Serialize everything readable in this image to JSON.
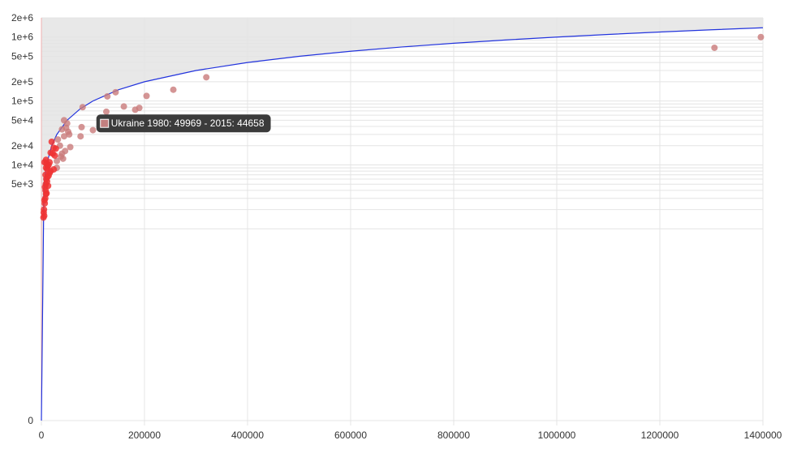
{
  "chart_data": {
    "type": "scatter",
    "title": "",
    "xlabel": "",
    "ylabel": "",
    "y_scale": "log1p",
    "xlim": [
      0,
      1400000
    ],
    "ylim": [
      0,
      2000000
    ],
    "x_ticks": [
      "0",
      "200000",
      "400000",
      "600000",
      "800000",
      "1000000",
      "1200000",
      "1400000"
    ],
    "y_ticks": [
      {
        "value": 0,
        "label": "0"
      },
      {
        "value": 5000,
        "label": "5e+3"
      },
      {
        "value": 10000,
        "label": "1e+4"
      },
      {
        "value": 20000,
        "label": "2e+4"
      },
      {
        "value": 50000,
        "label": "5e+4"
      },
      {
        "value": 100000,
        "label": "1e+5"
      },
      {
        "value": 200000,
        "label": "2e+5"
      },
      {
        "value": 500000,
        "label": "5e+5"
      },
      {
        "value": 1000000,
        "label": "1e+6"
      },
      {
        "value": 2000000,
        "label": "2e+6"
      }
    ],
    "grid": true,
    "colors": {
      "point_dense": "#ee3333",
      "point": "#c97a7a",
      "curve": "#2233dd",
      "shaded_region": "#e8e8e8",
      "axis_line": "#f0b0b0",
      "grid": "#e4e4e4",
      "tooltip_bg": "#3b3b3b",
      "tooltip_swatch": "#c27f7f"
    },
    "reference_curve": {
      "description": "1980 = 2015",
      "points": [
        [
          0,
          0
        ],
        [
          5000,
          5000
        ],
        [
          10000,
          10000
        ],
        [
          20000,
          20000
        ],
        [
          30000,
          30000
        ],
        [
          50000,
          50000
        ],
        [
          75000,
          75000
        ],
        [
          100000,
          100000
        ],
        [
          150000,
          150000
        ],
        [
          200000,
          200000
        ],
        [
          300000,
          300000
        ],
        [
          400000,
          400000
        ],
        [
          500000,
          500000
        ],
        [
          600000,
          600000
        ],
        [
          700000,
          700000
        ],
        [
          800000,
          800000
        ],
        [
          900000,
          900000
        ],
        [
          1000000,
          1000000
        ],
        [
          1100000,
          1100000
        ],
        [
          1200000,
          1200000
        ],
        [
          1300000,
          1300000
        ],
        [
          1400000,
          1400000
        ]
      ]
    },
    "series": [
      {
        "points": [
          [
            1396000,
            1000000
          ],
          [
            1306000,
            680000
          ],
          [
            320000,
            235000
          ],
          [
            256000,
            150000
          ],
          [
            204000,
            120000
          ],
          [
            144000,
            137000
          ],
          [
            128000,
            118000
          ],
          [
            126000,
            68000
          ],
          [
            160000,
            82000
          ],
          [
            182000,
            73000
          ],
          [
            190000,
            78000
          ],
          [
            80000,
            80000
          ],
          [
            100000,
            35000
          ],
          [
            78000,
            39000
          ],
          [
            76000,
            28000
          ],
          [
            49969,
            44658
          ],
          [
            44000,
            50000
          ],
          [
            40000,
            36000
          ],
          [
            48000,
            38000
          ],
          [
            52000,
            33000
          ],
          [
            54000,
            30000
          ],
          [
            44000,
            28000
          ],
          [
            32000,
            25000
          ],
          [
            36000,
            20000
          ],
          [
            56000,
            19000
          ],
          [
            46000,
            16500
          ],
          [
            40000,
            15000
          ],
          [
            38000,
            13500
          ],
          [
            42000,
            12500
          ],
          [
            30000,
            11500
          ],
          [
            26000,
            14000
          ],
          [
            22000,
            15000
          ],
          [
            18000,
            15500
          ],
          [
            28000,
            18000
          ],
          [
            24000,
            18500
          ],
          [
            20000,
            23000
          ],
          [
            16000,
            11000
          ],
          [
            14000,
            10000
          ],
          [
            30000,
            9000
          ],
          [
            24000,
            8500
          ],
          [
            18000,
            8000
          ],
          [
            16000,
            7500
          ],
          [
            12000,
            9500
          ],
          [
            10000,
            10500
          ],
          [
            9000,
            9000
          ],
          [
            8000,
            7000
          ],
          [
            9500,
            6000
          ],
          [
            11000,
            5500
          ],
          [
            8500,
            5000
          ],
          [
            7000,
            4500
          ],
          [
            8000,
            4000
          ],
          [
            9000,
            3500
          ],
          [
            7500,
            3000
          ],
          [
            6500,
            2500
          ],
          [
            5000,
            2000
          ],
          [
            4500,
            1800
          ],
          [
            5500,
            1600
          ],
          [
            4000,
            1500
          ],
          [
            6000,
            2800
          ],
          [
            10000,
            3600
          ],
          [
            12000,
            6500
          ],
          [
            14000,
            6800
          ],
          [
            13000,
            4700
          ],
          [
            11000,
            8600
          ],
          [
            6000,
            11000
          ],
          [
            9000,
            12000
          ]
        ]
      }
    ],
    "tooltip": {
      "text": "Ukraine 1980: 49969 - 2015: 44658",
      "point": [
        49969,
        44658
      ]
    }
  }
}
